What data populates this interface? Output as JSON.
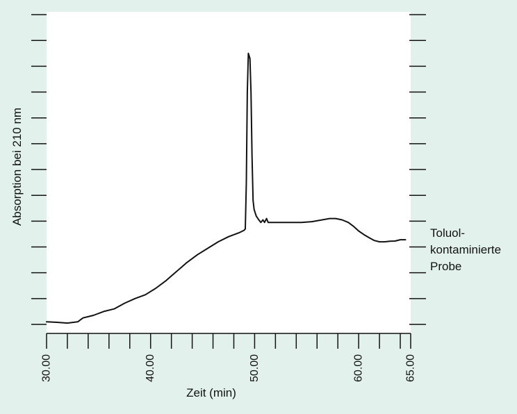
{
  "colors": {
    "page_background": "#e3f1ed",
    "plot_background": "#ffffff",
    "line": "#111111"
  },
  "chart_data": {
    "type": "line",
    "title": "",
    "xlabel": "Zeit (min)",
    "ylabel": "Absorption bei 210 nm",
    "xlim": [
      30,
      65
    ],
    "ylim": [
      0,
      12.5
    ],
    "x_tick_labels": [
      {
        "x": 30,
        "label": "30.00"
      },
      {
        "x": 40,
        "label": "40.00"
      },
      {
        "x": 50,
        "label": "50.00"
      },
      {
        "x": 60,
        "label": "60.00"
      },
      {
        "x": 65,
        "label": "65.00"
      }
    ],
    "x_minor_ticks": [
      32,
      34,
      36,
      38,
      42,
      44,
      46,
      48,
      52,
      54,
      56,
      58,
      62,
      64
    ],
    "y_ticks": [
      0,
      1,
      2,
      3,
      4,
      5,
      6,
      7,
      8,
      9,
      10,
      11,
      12
    ],
    "grid": false,
    "legend": "right",
    "annotation": "Toluol-\nkontaminierte\nProbe",
    "series": [
      {
        "points": [
          [
            30.0,
            0.1
          ],
          [
            31.0,
            0.08
          ],
          [
            32.0,
            0.05
          ],
          [
            33.0,
            0.1
          ],
          [
            33.5,
            0.25
          ],
          [
            34.5,
            0.35
          ],
          [
            35.5,
            0.5
          ],
          [
            36.5,
            0.6
          ],
          [
            37.5,
            0.82
          ],
          [
            38.5,
            1.0
          ],
          [
            39.5,
            1.15
          ],
          [
            40.5,
            1.4
          ],
          [
            41.5,
            1.7
          ],
          [
            42.5,
            2.05
          ],
          [
            43.5,
            2.4
          ],
          [
            44.5,
            2.7
          ],
          [
            45.5,
            2.95
          ],
          [
            46.5,
            3.2
          ],
          [
            47.5,
            3.4
          ],
          [
            48.5,
            3.55
          ],
          [
            49.0,
            3.65
          ],
          [
            49.1,
            3.7
          ],
          [
            49.2,
            5.5
          ],
          [
            49.3,
            9.0
          ],
          [
            49.4,
            10.5
          ],
          [
            49.55,
            10.3
          ],
          [
            49.65,
            9.0
          ],
          [
            49.75,
            6.5
          ],
          [
            49.85,
            4.8
          ],
          [
            49.95,
            4.45
          ],
          [
            50.15,
            4.2
          ],
          [
            50.4,
            4.05
          ],
          [
            50.6,
            3.95
          ],
          [
            50.8,
            4.05
          ],
          [
            50.95,
            3.95
          ],
          [
            51.15,
            4.1
          ],
          [
            51.3,
            3.95
          ],
          [
            51.6,
            3.95
          ],
          [
            53.0,
            3.95
          ],
          [
            54.5,
            3.95
          ],
          [
            55.5,
            3.98
          ],
          [
            56.5,
            4.05
          ],
          [
            57.2,
            4.1
          ],
          [
            57.8,
            4.1
          ],
          [
            58.4,
            4.05
          ],
          [
            59.0,
            3.95
          ],
          [
            59.5,
            3.8
          ],
          [
            60.0,
            3.62
          ],
          [
            60.5,
            3.48
          ],
          [
            61.0,
            3.36
          ],
          [
            61.5,
            3.25
          ],
          [
            62.0,
            3.2
          ],
          [
            62.5,
            3.2
          ],
          [
            63.0,
            3.22
          ],
          [
            63.5,
            3.23
          ],
          [
            64.0,
            3.28
          ],
          [
            64.5,
            3.28
          ]
        ]
      }
    ]
  }
}
